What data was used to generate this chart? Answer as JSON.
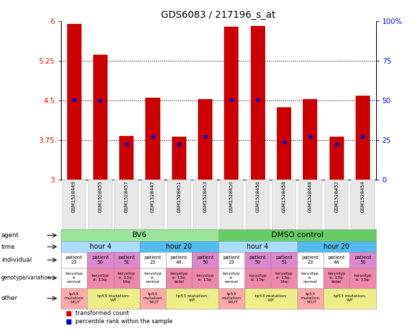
{
  "title": "GDS6083 / 217196_s_at",
  "samples": [
    "GSM1528449",
    "GSM1528455",
    "GSM1528457",
    "GSM1528447",
    "GSM1528451",
    "GSM1528453",
    "GSM1528450",
    "GSM1528456",
    "GSM1528458",
    "GSM1528448",
    "GSM1528452",
    "GSM1528454"
  ],
  "bar_values": [
    5.95,
    5.37,
    3.83,
    4.56,
    3.82,
    4.53,
    5.9,
    5.92,
    4.38,
    4.53,
    3.82,
    4.6
  ],
  "dot_values": [
    4.52,
    4.5,
    3.67,
    3.82,
    3.67,
    3.82,
    4.52,
    4.52,
    3.72,
    3.82,
    3.67,
    3.82
  ],
  "ylim": [
    3.0,
    6.0
  ],
  "yticks": [
    3.0,
    3.75,
    4.5,
    5.25,
    6.0
  ],
  "ytick_labels": [
    "3",
    "3.75",
    "4.5",
    "5.25",
    "6"
  ],
  "right_yticks": [
    0,
    25,
    50,
    75,
    100
  ],
  "right_ytick_labels": [
    "0",
    "25",
    "50",
    "75",
    "100%"
  ],
  "bar_color": "#cc0000",
  "dot_color": "#0000cc",
  "dotted_line_y": [
    3.75,
    4.5,
    5.25
  ],
  "agent_row": {
    "label": "agent",
    "groups": [
      {
        "text": "BV6",
        "start": 0,
        "end": 5,
        "color": "#99e699"
      },
      {
        "text": "DMSO control",
        "start": 6,
        "end": 11,
        "color": "#66cc66"
      }
    ]
  },
  "time_row": {
    "label": "time",
    "groups": [
      {
        "text": "hour 4",
        "start": 0,
        "end": 2,
        "color": "#aaddff"
      },
      {
        "text": "hour 20",
        "start": 3,
        "end": 5,
        "color": "#55bbee"
      },
      {
        "text": "hour 4",
        "start": 6,
        "end": 8,
        "color": "#aaddff"
      },
      {
        "text": "hour 20",
        "start": 9,
        "end": 11,
        "color": "#55bbee"
      }
    ]
  },
  "individual_row": {
    "label": "individual",
    "cells": [
      {
        "text": "patient\n23",
        "color": "#ffffff"
      },
      {
        "text": "patient\n50",
        "color": "#dd88cc"
      },
      {
        "text": "patient\n51",
        "color": "#dd88cc"
      },
      {
        "text": "patient\n23",
        "color": "#ffffff"
      },
      {
        "text": "patient\n44",
        "color": "#ffffff"
      },
      {
        "text": "patient\n50",
        "color": "#dd88cc"
      },
      {
        "text": "patient\n23",
        "color": "#ffffff"
      },
      {
        "text": "patient\n50",
        "color": "#dd88cc"
      },
      {
        "text": "patient\n51",
        "color": "#dd88cc"
      },
      {
        "text": "patient\n23",
        "color": "#ffffff"
      },
      {
        "text": "patient\n44",
        "color": "#ffffff"
      },
      {
        "text": "patient\n50",
        "color": "#dd88cc"
      }
    ]
  },
  "genotype_row": {
    "label": "genotype/variation",
    "cells": [
      {
        "text": "karyotyp\ne:\nnormal",
        "color": "#ffffff"
      },
      {
        "text": "karyotyp\ne: 13q-",
        "color": "#ee88aa"
      },
      {
        "text": "karyotyp\ne: 13q-,\n14q-",
        "color": "#ee88aa"
      },
      {
        "text": "karyotyp\ne:\nnormal",
        "color": "#ffffff"
      },
      {
        "text": "karyotyp\ne: 13q-\nbidel",
        "color": "#ee88aa"
      },
      {
        "text": "karyotyp\ne: 13q-",
        "color": "#ee88aa"
      },
      {
        "text": "karyotyp\ne:\nnormal",
        "color": "#ffffff"
      },
      {
        "text": "karyotyp\ne: 13q-",
        "color": "#ee88aa"
      },
      {
        "text": "karyotyp\ne: 13q-,\n14q-",
        "color": "#ee88aa"
      },
      {
        "text": "karyotyp\ne:\nnormal",
        "color": "#ffffff"
      },
      {
        "text": "karyotyp\ne: 13q-\nbidel",
        "color": "#ee88aa"
      },
      {
        "text": "karyotyp\ne: 13q-",
        "color": "#ee88aa"
      }
    ]
  },
  "other_row": {
    "label": "other",
    "cells": [
      {
        "text": "tp53\nmutation\n: MUT",
        "color": "#ffaaaa"
      },
      {
        "text": "tp53 mutation:\nWT",
        "color": "#eeee88"
      },
      {
        "text": "tp53\nmutation\n: MUT",
        "color": "#ffaaaa"
      },
      {
        "text": "tp53 mutation:\nWT",
        "color": "#eeee88"
      },
      {
        "text": "tp53\nmutation\n: MUT",
        "color": "#ffaaaa"
      },
      {
        "text": "tp53 mutation:\nWT",
        "color": "#eeee88"
      },
      {
        "text": "tp53\nmutation\n: MUT",
        "color": "#ffaaaa"
      },
      {
        "text": "tp53 mutation:\nWT",
        "color": "#eeee88"
      }
    ],
    "spans": [
      {
        "start": 0,
        "end": 0
      },
      {
        "start": 1,
        "end": 2
      },
      {
        "start": 3,
        "end": 3
      },
      {
        "start": 4,
        "end": 5
      },
      {
        "start": 6,
        "end": 6
      },
      {
        "start": 7,
        "end": 8
      },
      {
        "start": 9,
        "end": 9
      },
      {
        "start": 10,
        "end": 11
      }
    ]
  }
}
